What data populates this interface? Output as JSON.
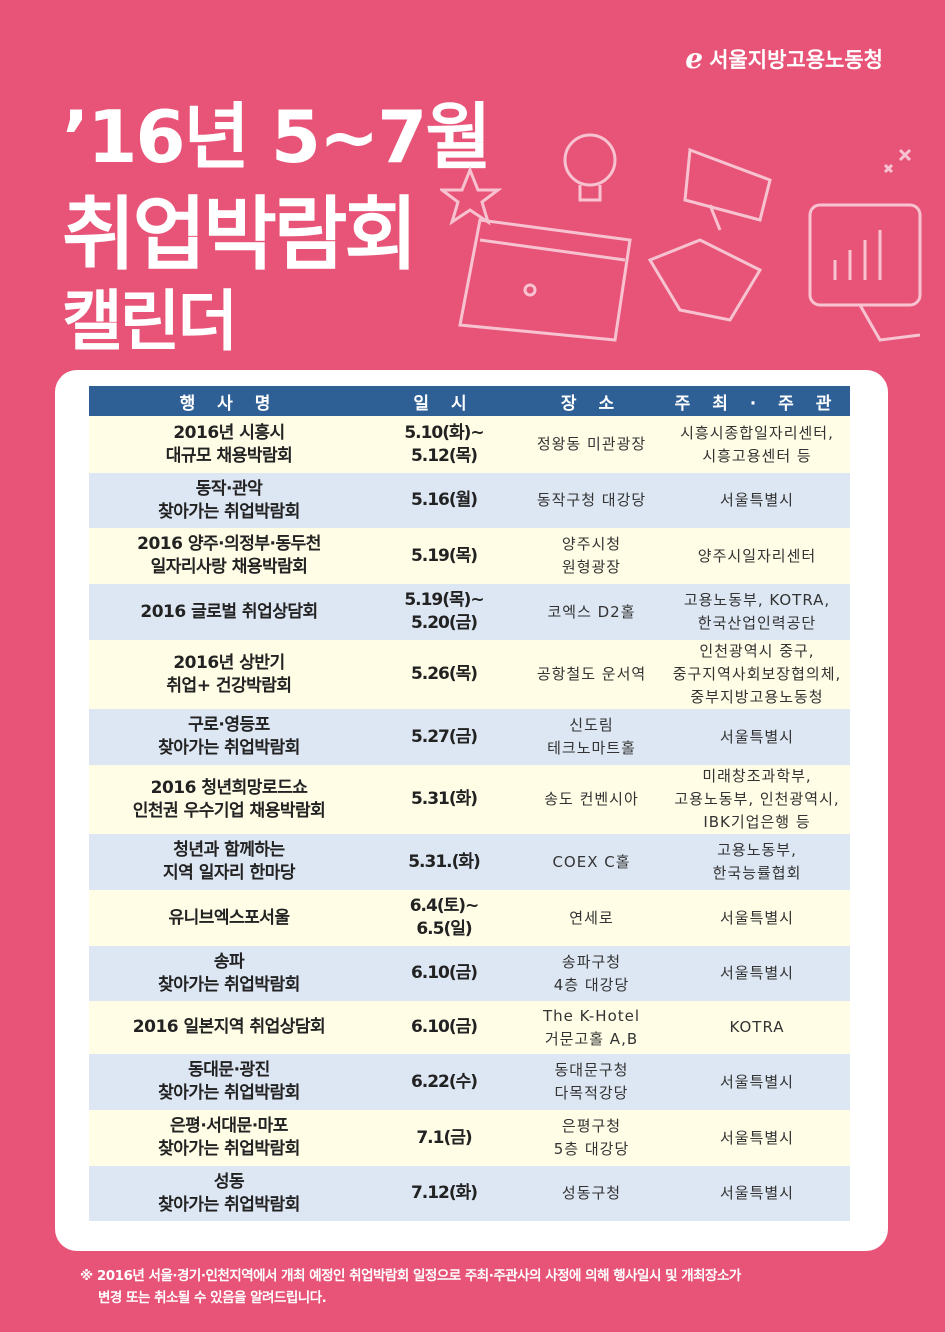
{
  "header": {
    "logo_text": "서울지방고용노동청",
    "title_line1": "’16년 5~7월",
    "title_line2": "취업박람회",
    "title_line3": "캘린더"
  },
  "table": {
    "columns": [
      "행 사 명",
      "일 시",
      "장 소",
      "주 최 · 주 관"
    ],
    "rows": [
      {
        "name": "2016년 시흥시\n대규모 채용박람회",
        "date": "5.10(화)~\n5.12(목)",
        "place": "정왕동 미관광장",
        "host": "시흥시종합일자리센터,\n시흥고용센터 등"
      },
      {
        "name": "동작·관악\n찾아가는 취업박람회",
        "date": "5.16(월)",
        "place": "동작구청 대강당",
        "host": "서울특별시"
      },
      {
        "name": "2016 양주·의정부·동두천\n일자리사랑 채용박람회",
        "date": "5.19(목)",
        "place": "양주시청\n원형광장",
        "host": "양주시일자리센터"
      },
      {
        "name": "2016 글로벌 취업상담회",
        "date": "5.19(목)~\n5.20(금)",
        "place": "코엑스 D2홀",
        "host": "고용노동부, KOTRA,\n한국산업인력공단"
      },
      {
        "name": "2016년 상반기\n취업+ 건강박람회",
        "date": "5.26(목)",
        "place": "공항철도 운서역",
        "host": "인천광역시 중구,\n중구지역사회보장협의체,\n중부지방고용노동청"
      },
      {
        "name": "구로·영등포\n찾아가는 취업박람회",
        "date": "5.27(금)",
        "place": "신도림\n테크노마트홀",
        "host": "서울특별시"
      },
      {
        "name": "2016 청년희망로드쇼\n인천권 우수기업 채용박람회",
        "date": "5.31(화)",
        "place": "송도 컨벤시아",
        "host": "미래창조과학부,\n고용노동부, 인천광역시,\nIBK기업은행 등"
      },
      {
        "name": "청년과 함께하는\n지역 일자리 한마당",
        "date": "5.31.(화)",
        "place": "COEX C홀",
        "host": "고용노동부,\n한국능률협회"
      },
      {
        "name": "유니브엑스포서울",
        "date": "6.4(토)~\n6.5(일)",
        "place": "연세로",
        "host": "서울특별시"
      },
      {
        "name": "송파\n찾아가는 취업박람회",
        "date": "6.10(금)",
        "place": "송파구청\n4층 대강당",
        "host": "서울특별시"
      },
      {
        "name": "2016 일본지역 취업상담회",
        "date": "6.10(금)",
        "place": "The K-Hotel\n거문고홀 A,B",
        "host": "KOTRA"
      },
      {
        "name": "동대문·광진\n찾아가는 취업박람회",
        "date": "6.22(수)",
        "place": "동대문구청\n다목적강당",
        "host": "서울특별시"
      },
      {
        "name": "은평·서대문·마포\n찾아가는 취업박람회",
        "date": "7.1(금)",
        "place": "은평구청\n5층 대강당",
        "host": "서울특별시"
      },
      {
        "name": "성동\n찾아가는 취업박람회",
        "date": "7.12(화)",
        "place": "성동구청",
        "host": "서울특별시"
      }
    ]
  },
  "footer": {
    "note_line1": "※ 2016년 서울·경기·인천지역에서 개최 예정인 취업박람회 일정으로 주최·주관사의 사정에 의해 행사일시 및 개최장소가",
    "note_line2": "변경 또는 취소될 수 있음을 알려드립니다."
  },
  "colors": {
    "background": "#e85478",
    "header_row": "#2e6096",
    "row_cream": "#fffde6",
    "row_blue": "#dde7f3"
  }
}
